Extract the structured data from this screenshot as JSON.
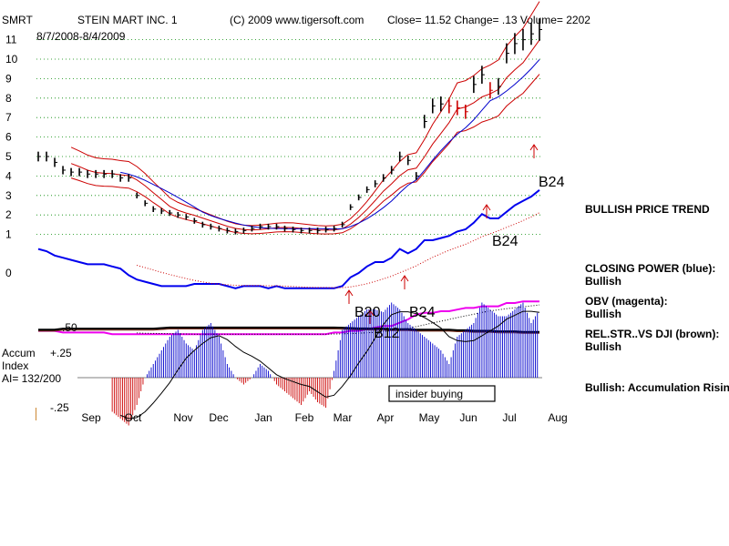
{
  "header": {
    "symbol": "SMRT",
    "company": "STEIN MART INC. 1",
    "copyright": "(C) 2009 www.tigersoft.com",
    "quote": "Close=  11.52  Change= .13 Volume= 2202",
    "date_range": "8/7/2008-8/4/2009"
  },
  "chart_data": {
    "type": "line",
    "price_axis": {
      "ticks": [
        "11",
        "10",
        "9",
        "8",
        "7",
        "6",
        "5",
        "4",
        "3",
        "2",
        "1",
        "0"
      ],
      "ylim": [
        0,
        11.5
      ]
    },
    "accum_axis": {
      "labels": [
        ".50",
        "+.25",
        "-.25"
      ]
    },
    "months": [
      "Sep",
      "Oct",
      "Nov",
      "Dec",
      "Jan",
      "Feb",
      "Mar",
      "Apr",
      "May",
      "Jun",
      "Jul",
      "Aug"
    ],
    "grid": true,
    "price": [
      5.0,
      5.0,
      4.7,
      4.3,
      4.2,
      4.2,
      4.1,
      4.1,
      4.1,
      4.1,
      3.9,
      3.9,
      3.0,
      2.6,
      2.3,
      2.2,
      2.1,
      2.0,
      1.9,
      1.7,
      1.5,
      1.4,
      1.3,
      1.2,
      1.15,
      1.2,
      1.3,
      1.4,
      1.4,
      1.4,
      1.3,
      1.25,
      1.2,
      1.2,
      1.2,
      1.25,
      1.3,
      1.5,
      2.4,
      2.9,
      3.3,
      3.6,
      3.9,
      4.3,
      5.0,
      4.8,
      4.0,
      6.8,
      7.6,
      7.7,
      7.6,
      7.5,
      7.3,
      8.7,
      9.2,
      8.4,
      8.6,
      10.3,
      10.8,
      11.0,
      11.3,
      11.52
    ],
    "series": [
      {
        "name": "CLOSING POWER",
        "color": "#0000ee"
      },
      {
        "name": "OBV",
        "color": "#ee00ee"
      },
      {
        "name": "REL.STR. VS DJI",
        "color": "#7a2e1a"
      },
      {
        "name": "Accum Index",
        "color": "#0000cc"
      }
    ],
    "closing_power": [
      0.6,
      0.5,
      0.3,
      0.2,
      0.1,
      0.0,
      -0.1,
      -0.1,
      -0.1,
      -0.2,
      -0.3,
      -0.6,
      -0.8,
      -0.9,
      -1.0,
      -1.1,
      -1.1,
      -1.1,
      -1.1,
      -1.0,
      -1.0,
      -1.0,
      -1.0,
      -1.1,
      -1.2,
      -1.1,
      -1.1,
      -1.1,
      -1.2,
      -1.1,
      -1.2,
      -1.2,
      -1.2,
      -1.2,
      -1.2,
      -1.2,
      -1.2,
      -1.1,
      -0.7,
      -0.5,
      -0.2,
      0.0,
      0.0,
      0.2,
      0.6,
      0.4,
      0.6,
      1.0,
      1.0,
      1.1,
      1.2,
      1.4,
      1.5,
      1.8,
      2.2,
      2.0,
      2.0,
      2.3,
      2.6,
      2.8,
      3.0,
      3.3
    ],
    "obv": [
      -1.7,
      -1.7,
      -1.7,
      -1.8,
      -1.8,
      -1.8,
      -1.8,
      -1.8,
      -1.8,
      -1.9,
      -1.9,
      -1.9,
      -1.9,
      -1.9,
      -1.9,
      -1.9,
      -1.9,
      -1.9,
      -1.9,
      -1.9,
      -1.9,
      -1.9,
      -1.9,
      -1.9,
      -1.9,
      -1.9,
      -1.9,
      -1.9,
      -1.9,
      -1.9,
      -1.9,
      -1.9,
      -1.9,
      -1.9,
      -1.9,
      -1.9,
      -1.8,
      -1.8,
      -1.7,
      -1.7,
      -1.6,
      -1.5,
      -1.4,
      -1.4,
      -1.2,
      -1.0,
      -0.7,
      -0.6,
      -0.6,
      -0.5,
      -0.5,
      -0.4,
      -0.3,
      -0.3,
      -0.2,
      -0.2,
      -0.2,
      0.0,
      0.0,
      0.1,
      0.1,
      0.1
    ],
    "rel_strength": [
      0.3,
      0.3,
      0.3,
      0.4,
      0.4,
      0.4,
      0.4,
      0.4,
      0.4,
      0.4,
      0.4,
      0.4,
      0.4,
      0.4,
      0.4,
      0.45,
      0.5,
      0.5,
      0.5,
      0.5,
      0.5,
      0.5,
      0.5,
      0.5,
      0.5,
      0.5,
      0.5,
      0.5,
      0.5,
      0.5,
      0.5,
      0.5,
      0.5,
      0.5,
      0.5,
      0.5,
      0.5,
      0.48,
      0.45,
      0.42,
      0.42,
      0.4,
      0.4,
      0.35,
      0.35,
      0.35,
      0.3,
      0.3,
      0.3,
      0.3,
      0.3,
      0.25,
      0.25,
      0.2,
      0.2,
      0.2,
      0.15,
      0.15,
      0.15,
      0.1,
      0.1,
      0.1
    ],
    "accum_index": [
      -0.15,
      -0.22,
      -0.25,
      -0.2,
      -0.18,
      -0.25,
      -0.3,
      -0.35,
      -0.3,
      -0.25,
      -0.3,
      -0.35,
      -0.2,
      0.0,
      0.1,
      0.2,
      0.3,
      0.35,
      0.25,
      0.2,
      0.35,
      0.4,
      0.3,
      0.1,
      0.0,
      -0.05,
      0.0,
      0.1,
      0.05,
      -0.05,
      -0.1,
      -0.15,
      -0.2,
      -0.1,
      -0.18,
      -0.22,
      0.05,
      0.35,
      0.4,
      0.45,
      0.5,
      0.5,
      0.48,
      0.55,
      0.5,
      0.4,
      0.35,
      0.3,
      0.25,
      0.2,
      0.1,
      0.3,
      0.35,
      0.4,
      0.55,
      0.5,
      0.45,
      0.45,
      0.5,
      0.55,
      0.4,
      0.5
    ],
    "signals": [
      {
        "label": "B24",
        "index": 61,
        "panel": "price"
      },
      {
        "label": "B24",
        "index": 54,
        "panel": "cp"
      },
      {
        "label": "B20",
        "index": 36,
        "panel": "obv"
      },
      {
        "label": "B24",
        "index": 46,
        "panel": "obv"
      },
      {
        "label": "B12",
        "index": 40,
        "panel": "rel"
      }
    ],
    "annotations": {
      "insider": "insider buying",
      "accum_label_1": "Accum",
      "accum_label_2": "Index",
      "ai_value": "AI= 132/200"
    }
  },
  "commentary": {
    "trend": "BULLISH PRICE TREND",
    "cp_title": "CLOSING POWER (blue):",
    "cp_value": "Bullish",
    "obv_title": "OBV (magenta):",
    "obv_value": "Bullish",
    "rel_title": "REL.STR..VS DJI (brown):",
    "rel_value": "Bullish",
    "accum_note": "Bullish: Accumulation Rising"
  }
}
